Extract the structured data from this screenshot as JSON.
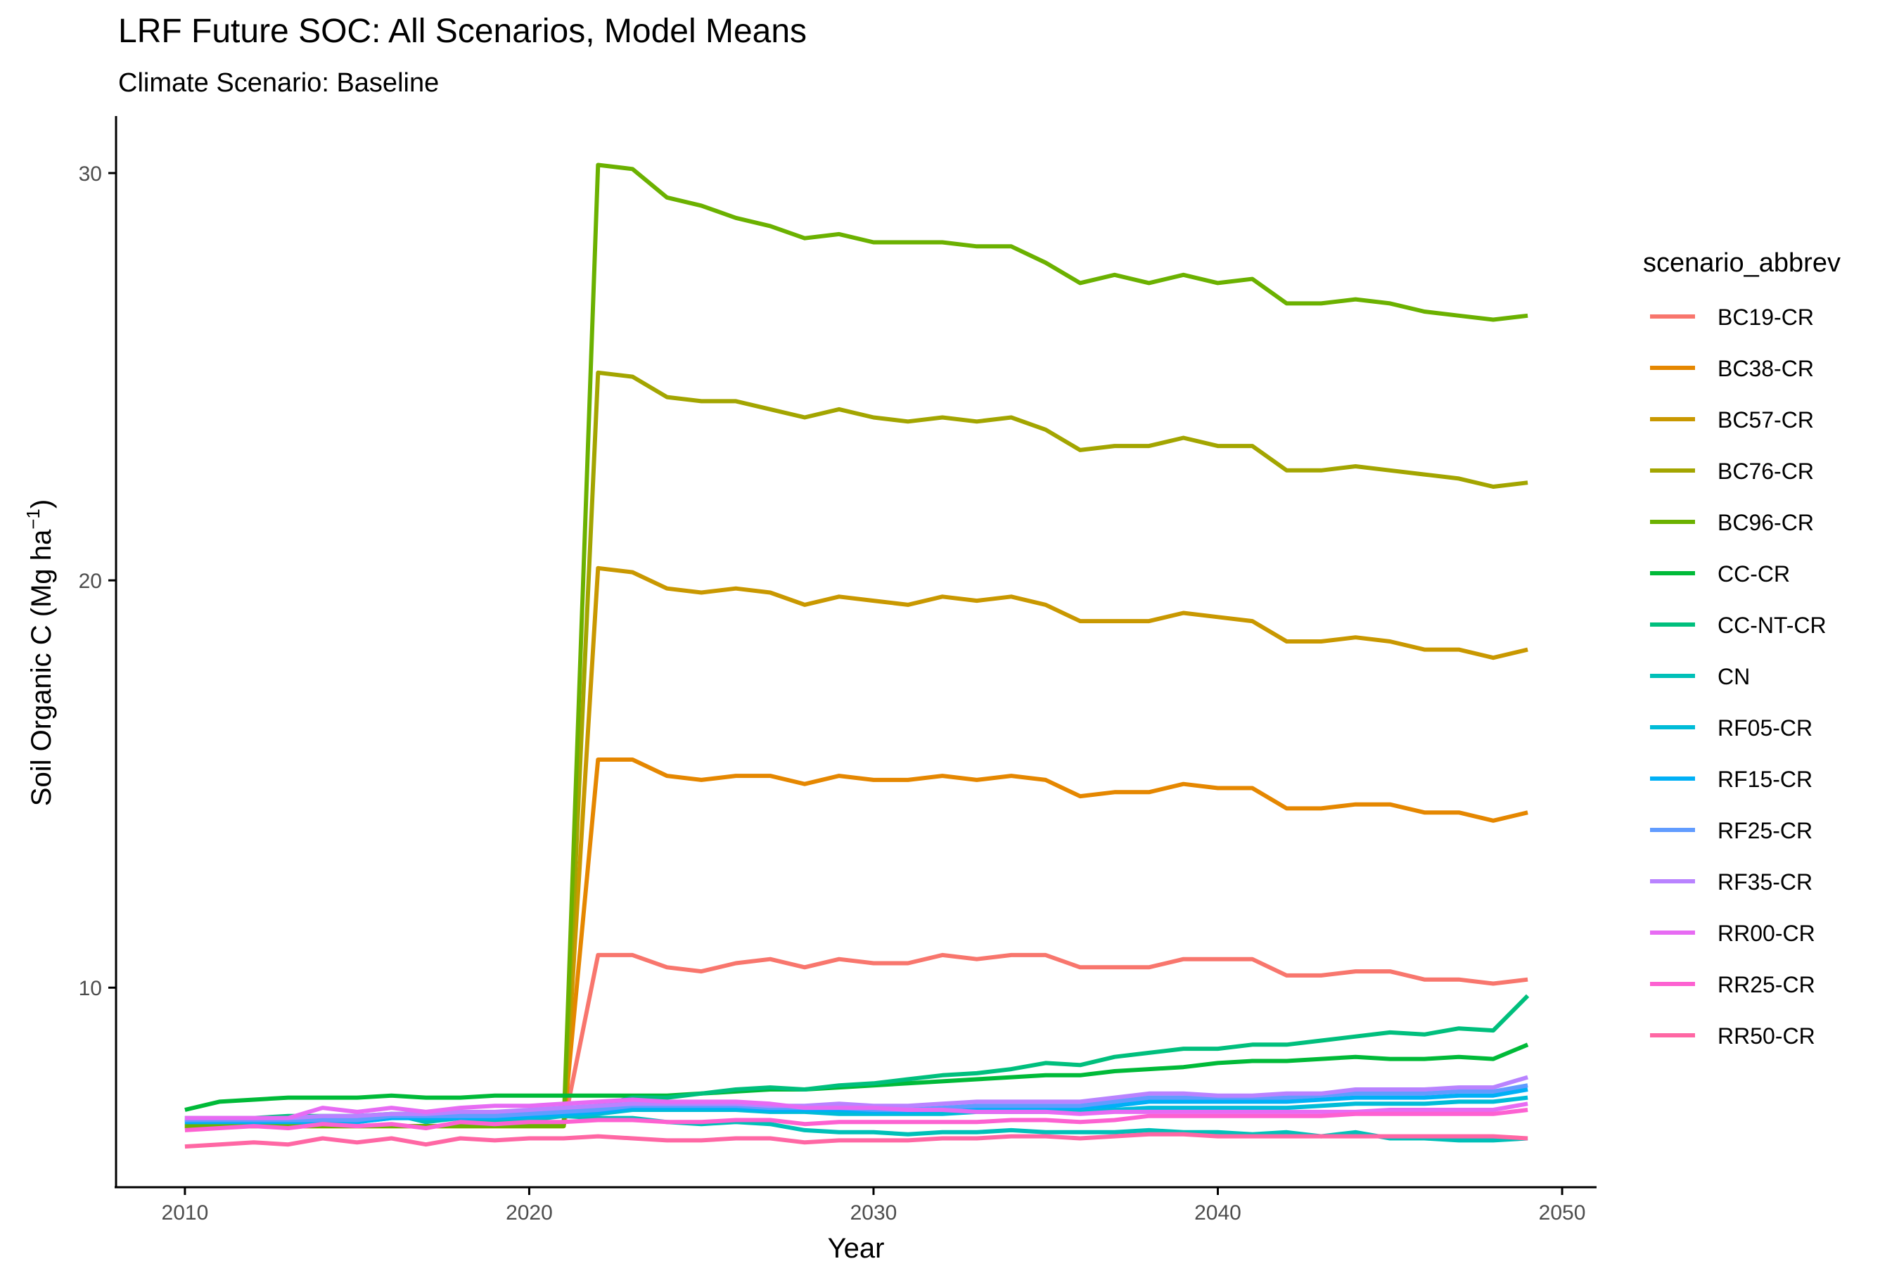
{
  "chart_data": {
    "type": "line",
    "title": "LRF Future SOC: All Scenarios, Model Means",
    "subtitle": "Climate Scenario: Baseline",
    "xlabel": "Year",
    "ylabel_main": "Soil Organic C (Mg ha",
    "ylabel_sup": "−1",
    "ylabel_close": ")",
    "xlim": [
      2008,
      2051
    ],
    "ylim": [
      5.1,
      31.4
    ],
    "x_ticks": [
      2010,
      2020,
      2030,
      2040,
      2050
    ],
    "y_ticks": [
      10,
      20,
      30
    ],
    "grid": false,
    "legend_title": "scenario_abbrev",
    "legend_position": "right",
    "x": [
      2010,
      2011,
      2012,
      2013,
      2014,
      2015,
      2016,
      2017,
      2018,
      2019,
      2020,
      2021,
      2022,
      2023,
      2024,
      2025,
      2026,
      2027,
      2028,
      2029,
      2030,
      2031,
      2032,
      2033,
      2034,
      2035,
      2036,
      2037,
      2038,
      2039,
      2040,
      2041,
      2042,
      2043,
      2044,
      2045,
      2046,
      2047,
      2048,
      2049
    ],
    "series": [
      {
        "name": "BC19-CR",
        "color": "#F8766D",
        "values": [
          6.6,
          6.6,
          6.6,
          6.6,
          6.6,
          6.6,
          6.6,
          6.6,
          6.6,
          6.6,
          6.6,
          6.6,
          10.8,
          10.8,
          10.5,
          10.4,
          10.6,
          10.7,
          10.5,
          10.7,
          10.6,
          10.6,
          10.8,
          10.7,
          10.8,
          10.8,
          10.5,
          10.5,
          10.5,
          10.7,
          10.7,
          10.7,
          10.3,
          10.3,
          10.4,
          10.4,
          10.2,
          10.2,
          10.1,
          10.2
        ]
      },
      {
        "name": "BC38-CR",
        "color": "#E58700",
        "values": [
          6.6,
          6.6,
          6.6,
          6.6,
          6.6,
          6.6,
          6.6,
          6.6,
          6.6,
          6.6,
          6.6,
          6.6,
          15.6,
          15.6,
          15.2,
          15.1,
          15.2,
          15.2,
          15.0,
          15.2,
          15.1,
          15.1,
          15.2,
          15.1,
          15.2,
          15.1,
          14.7,
          14.8,
          14.8,
          15.0,
          14.9,
          14.9,
          14.4,
          14.4,
          14.5,
          14.5,
          14.3,
          14.3,
          14.1,
          14.3
        ]
      },
      {
        "name": "BC57-CR",
        "color": "#C99800",
        "values": [
          6.6,
          6.6,
          6.6,
          6.6,
          6.6,
          6.6,
          6.6,
          6.6,
          6.6,
          6.6,
          6.6,
          6.6,
          20.3,
          20.2,
          19.8,
          19.7,
          19.8,
          19.7,
          19.4,
          19.6,
          19.5,
          19.4,
          19.6,
          19.5,
          19.6,
          19.4,
          19.0,
          19.0,
          19.0,
          19.2,
          19.1,
          19.0,
          18.5,
          18.5,
          18.6,
          18.5,
          18.3,
          18.3,
          18.1,
          18.3
        ]
      },
      {
        "name": "BC76-CR",
        "color": "#A3A500",
        "values": [
          6.6,
          6.6,
          6.6,
          6.6,
          6.6,
          6.6,
          6.6,
          6.6,
          6.6,
          6.6,
          6.6,
          6.6,
          25.1,
          25.0,
          24.5,
          24.4,
          24.4,
          24.2,
          24.0,
          24.2,
          24.0,
          23.9,
          24.0,
          23.9,
          24.0,
          23.7,
          23.2,
          23.3,
          23.3,
          23.5,
          23.3,
          23.3,
          22.7,
          22.7,
          22.8,
          22.7,
          22.6,
          22.5,
          22.3,
          22.4
        ]
      },
      {
        "name": "BC96-CR",
        "color": "#6BB100",
        "values": [
          6.6,
          6.6,
          6.6,
          6.6,
          6.6,
          6.6,
          6.6,
          6.6,
          6.6,
          6.6,
          6.6,
          6.6,
          30.2,
          30.1,
          29.4,
          29.2,
          28.9,
          28.7,
          28.4,
          28.5,
          28.3,
          28.3,
          28.3,
          28.2,
          28.2,
          27.8,
          27.3,
          27.5,
          27.3,
          27.5,
          27.3,
          27.4,
          26.8,
          26.8,
          26.9,
          26.8,
          26.6,
          26.5,
          26.4,
          26.5
        ]
      },
      {
        "name": "CC-CR",
        "color": "#00BA38",
        "values": [
          7.0,
          7.2,
          7.25,
          7.3,
          7.3,
          7.3,
          7.35,
          7.3,
          7.3,
          7.35,
          7.35,
          7.35,
          7.35,
          7.35,
          7.35,
          7.4,
          7.45,
          7.5,
          7.5,
          7.55,
          7.6,
          7.65,
          7.7,
          7.75,
          7.8,
          7.85,
          7.85,
          7.95,
          8.0,
          8.05,
          8.15,
          8.2,
          8.2,
          8.25,
          8.3,
          8.25,
          8.25,
          8.3,
          8.25,
          8.6
        ]
      },
      {
        "name": "CC-NT-CR",
        "color": "#00BF7D",
        "values": [
          6.8,
          6.8,
          6.8,
          6.85,
          6.85,
          6.85,
          6.9,
          6.9,
          6.9,
          6.9,
          6.9,
          6.95,
          7.1,
          7.3,
          7.3,
          7.4,
          7.5,
          7.55,
          7.5,
          7.6,
          7.65,
          7.75,
          7.85,
          7.9,
          8.0,
          8.15,
          8.1,
          8.3,
          8.4,
          8.5,
          8.5,
          8.6,
          8.6,
          8.7,
          8.8,
          8.9,
          8.85,
          9.0,
          8.95,
          9.8
        ]
      },
      {
        "name": "CN",
        "color": "#00C0B8",
        "values": [
          6.7,
          6.7,
          6.7,
          6.7,
          6.7,
          6.7,
          6.9,
          6.7,
          6.8,
          6.7,
          6.75,
          6.85,
          6.8,
          6.8,
          6.7,
          6.65,
          6.7,
          6.65,
          6.5,
          6.45,
          6.45,
          6.4,
          6.45,
          6.45,
          6.5,
          6.45,
          6.45,
          6.45,
          6.5,
          6.45,
          6.45,
          6.4,
          6.45,
          6.35,
          6.45,
          6.3,
          6.3,
          6.25,
          6.25,
          6.3
        ]
      },
      {
        "name": "RF05-CR",
        "color": "#00BCD8",
        "values": [
          6.7,
          6.7,
          6.7,
          6.7,
          6.7,
          6.7,
          6.8,
          6.8,
          6.8,
          6.8,
          6.8,
          6.85,
          6.9,
          7.0,
          7.0,
          7.0,
          7.0,
          6.95,
          6.95,
          6.9,
          6.9,
          6.9,
          6.9,
          6.95,
          6.95,
          6.95,
          6.95,
          7.0,
          7.05,
          7.05,
          7.05,
          7.05,
          7.05,
          7.1,
          7.15,
          7.15,
          7.15,
          7.2,
          7.2,
          7.3
        ]
      },
      {
        "name": "RF15-CR",
        "color": "#00B0F6",
        "values": [
          6.7,
          6.7,
          6.7,
          6.7,
          6.7,
          6.7,
          6.8,
          6.8,
          6.8,
          6.8,
          6.85,
          6.9,
          6.95,
          7.05,
          7.05,
          7.05,
          7.05,
          7.0,
          7.0,
          7.0,
          6.95,
          6.95,
          7.0,
          7.0,
          7.05,
          7.05,
          7.05,
          7.1,
          7.2,
          7.2,
          7.2,
          7.2,
          7.2,
          7.25,
          7.3,
          7.3,
          7.3,
          7.35,
          7.35,
          7.5
        ]
      },
      {
        "name": "RF25-CR",
        "color": "#619CFF",
        "values": [
          6.75,
          6.75,
          6.75,
          6.75,
          6.75,
          6.75,
          6.85,
          6.85,
          6.85,
          6.85,
          6.9,
          6.95,
          7.0,
          7.1,
          7.1,
          7.1,
          7.1,
          7.05,
          7.05,
          7.05,
          7.0,
          7.0,
          7.05,
          7.1,
          7.1,
          7.1,
          7.1,
          7.2,
          7.3,
          7.3,
          7.3,
          7.3,
          7.3,
          7.35,
          7.4,
          7.4,
          7.4,
          7.45,
          7.45,
          7.6
        ]
      },
      {
        "name": "RF35-CR",
        "color": "#B983FF",
        "values": [
          6.8,
          6.8,
          6.8,
          6.8,
          6.85,
          6.85,
          6.9,
          6.9,
          6.95,
          6.95,
          7.0,
          7.05,
          7.1,
          7.15,
          7.15,
          7.15,
          7.15,
          7.1,
          7.1,
          7.15,
          7.1,
          7.1,
          7.15,
          7.2,
          7.2,
          7.2,
          7.2,
          7.3,
          7.4,
          7.4,
          7.35,
          7.35,
          7.4,
          7.4,
          7.5,
          7.5,
          7.5,
          7.55,
          7.55,
          7.8
        ]
      },
      {
        "name": "RR00-CR",
        "color": "#E76BF3",
        "values": [
          6.8,
          6.8,
          6.8,
          6.8,
          7.05,
          6.95,
          7.05,
          6.95,
          7.05,
          7.1,
          7.1,
          7.15,
          7.2,
          7.25,
          7.2,
          7.2,
          7.2,
          7.15,
          7.05,
          7.05,
          7.05,
          7.0,
          7.0,
          6.95,
          6.95,
          6.95,
          6.9,
          6.95,
          6.95,
          6.95,
          6.95,
          6.95,
          6.95,
          6.95,
          6.95,
          7.0,
          7.0,
          7.0,
          7.0,
          7.15
        ]
      },
      {
        "name": "RR25-CR",
        "color": "#FD61D1",
        "values": [
          6.5,
          6.55,
          6.6,
          6.55,
          6.65,
          6.6,
          6.65,
          6.55,
          6.7,
          6.65,
          6.7,
          6.7,
          6.75,
          6.75,
          6.7,
          6.7,
          6.75,
          6.75,
          6.65,
          6.7,
          6.7,
          6.7,
          6.7,
          6.7,
          6.75,
          6.75,
          6.7,
          6.75,
          6.85,
          6.85,
          6.85,
          6.85,
          6.85,
          6.85,
          6.9,
          6.9,
          6.9,
          6.9,
          6.9,
          7.0
        ]
      },
      {
        "name": "RR50-CR",
        "color": "#FF67A4",
        "values": [
          6.1,
          6.15,
          6.2,
          6.15,
          6.3,
          6.2,
          6.3,
          6.15,
          6.3,
          6.25,
          6.3,
          6.3,
          6.35,
          6.3,
          6.25,
          6.25,
          6.3,
          6.3,
          6.2,
          6.25,
          6.25,
          6.25,
          6.3,
          6.3,
          6.35,
          6.35,
          6.3,
          6.35,
          6.4,
          6.4,
          6.35,
          6.35,
          6.35,
          6.35,
          6.35,
          6.35,
          6.35,
          6.35,
          6.35,
          6.3
        ]
      }
    ]
  }
}
